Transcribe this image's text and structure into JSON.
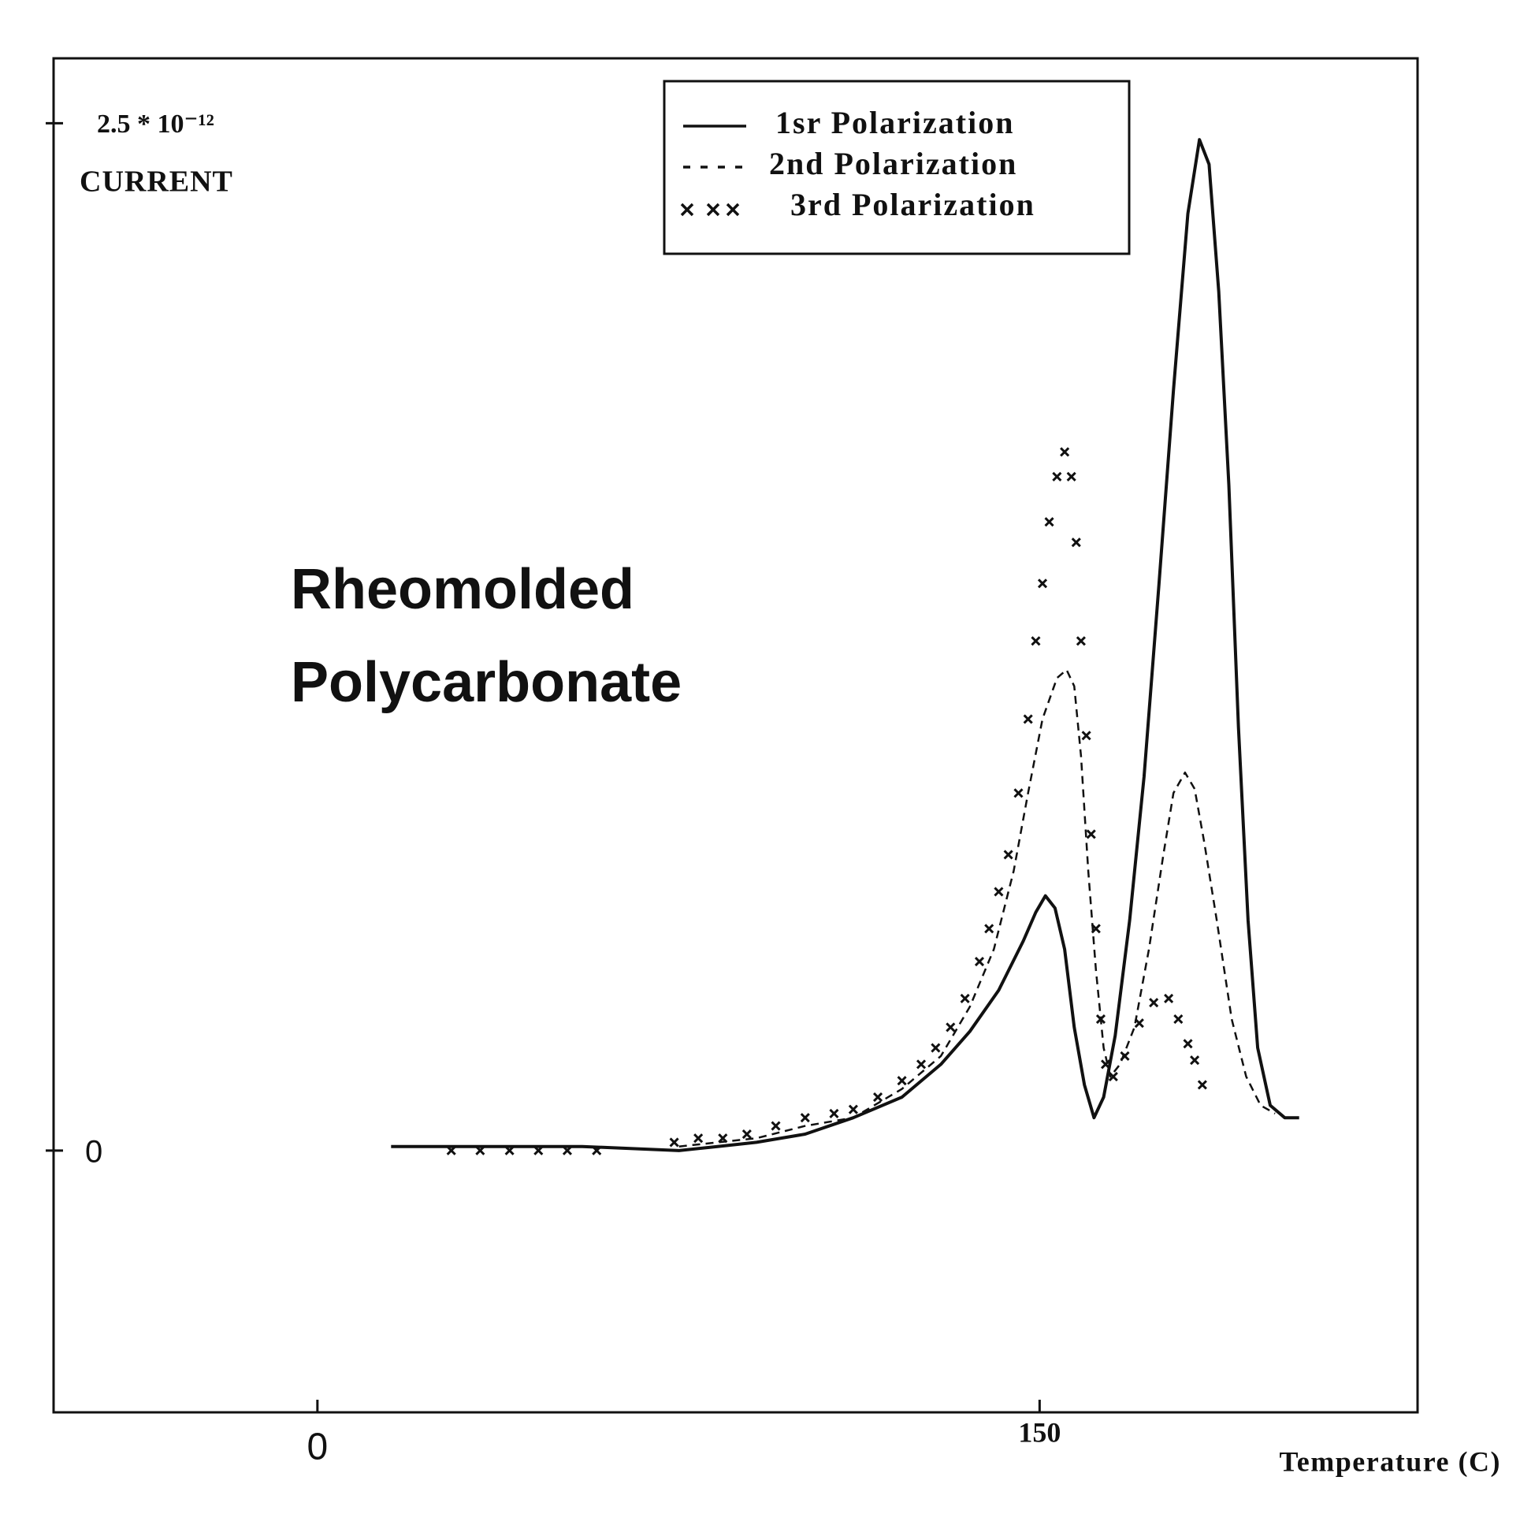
{
  "chart_data": {
    "type": "line",
    "y_label": "CURRENT",
    "x_label": "Temperature (C)",
    "annotation": [
      "Rheomolded",
      "Polycarbonate"
    ],
    "legend": "top-right",
    "xlim": [
      -54.8,
      228.5
    ],
    "ylim": [
      -0.637,
      2.658
    ],
    "xticks": [
      0,
      150
    ],
    "yticks": [
      0,
      {
        "value": 2.5,
        "label": "2.5 * 10⁻¹²"
      }
    ],
    "series": [
      {
        "name": "1sr Polarization",
        "color": "#111111",
        "style": "solid",
        "x": [
          15.3,
          34.8,
          55.0,
          75.1,
          83.1,
          91.2,
          101.3,
          111.3,
          121.4,
          129.5,
          135.5,
          141.5,
          146.6,
          149.2,
          151.2,
          153.2,
          155.2,
          157.2,
          159.3,
          161.3,
          163.3,
          165.7,
          168.7,
          171.7,
          174.8,
          177.8,
          180.8,
          183.2,
          185.2,
          187.2,
          189.3,
          191.3,
          193.3,
          195.3,
          197.9,
          200.9,
          203.9
        ],
        "values": [
          0.01,
          0.01,
          0.01,
          0,
          0.01,
          0.02,
          0.04,
          0.08,
          0.13,
          0.21,
          0.29,
          0.39,
          0.51,
          0.58,
          0.62,
          0.59,
          0.49,
          0.3,
          0.16,
          0.08,
          0.13,
          0.28,
          0.56,
          0.91,
          1.38,
          1.85,
          2.28,
          2.46,
          2.4,
          2.09,
          1.62,
          1.03,
          0.56,
          0.25,
          0.11,
          0.08,
          0.08
        ]
      },
      {
        "name": "2nd Polarization",
        "color": "#111111",
        "style": "dashed",
        "x": [
          75.1,
          91.2,
          101.3,
          111.3,
          121.4,
          129.5,
          135.5,
          140.5,
          144.6,
          147.6,
          150.6,
          153.6,
          155.6,
          157.2,
          158.6,
          160.1,
          161.7,
          163.3,
          164.7,
          166.7,
          169.7,
          172.7,
          175.7,
          177.8,
          180.2,
          182.2,
          184.2,
          186.8,
          189.9,
          192.9,
          195.9,
          198.9
        ],
        "values": [
          0.01,
          0.03,
          0.06,
          0.08,
          0.15,
          0.23,
          0.35,
          0.49,
          0.68,
          0.87,
          1.05,
          1.15,
          1.17,
          1.13,
          0.96,
          0.68,
          0.44,
          0.25,
          0.18,
          0.21,
          0.3,
          0.49,
          0.72,
          0.87,
          0.92,
          0.88,
          0.75,
          0.56,
          0.32,
          0.18,
          0.11,
          0.09
        ]
      },
      {
        "name": "3rd Polarization",
        "color": "#111111",
        "style": "x-markers",
        "x": [
          27.8,
          33.8,
          39.9,
          45.9,
          51.9,
          58.0,
          74.1,
          79.1,
          84.2,
          89.2,
          95.2,
          101.3,
          107.3,
          111.3,
          116.4,
          121.4,
          125.4,
          128.4,
          131.5,
          134.5,
          137.5,
          139.5,
          141.5,
          143.5,
          145.6,
          147.6,
          149.2,
          150.6,
          152.0,
          153.6,
          155.2,
          156.6,
          157.6,
          158.6,
          159.7,
          160.7,
          161.7,
          162.7,
          163.7,
          165.3,
          167.7,
          170.7,
          173.7,
          176.8,
          178.8,
          180.8,
          182.2,
          183.8
        ],
        "values": [
          0,
          0,
          0,
          0,
          0,
          0,
          0.02,
          0.03,
          0.03,
          0.04,
          0.06,
          0.08,
          0.09,
          0.1,
          0.13,
          0.17,
          0.21,
          0.25,
          0.3,
          0.37,
          0.46,
          0.54,
          0.63,
          0.72,
          0.87,
          1.05,
          1.24,
          1.38,
          1.53,
          1.64,
          1.7,
          1.64,
          1.48,
          1.24,
          1.01,
          0.77,
          0.54,
          0.32,
          0.21,
          0.18,
          0.23,
          0.31,
          0.36,
          0.37,
          0.32,
          0.26,
          0.22,
          0.16
        ]
      }
    ]
  }
}
